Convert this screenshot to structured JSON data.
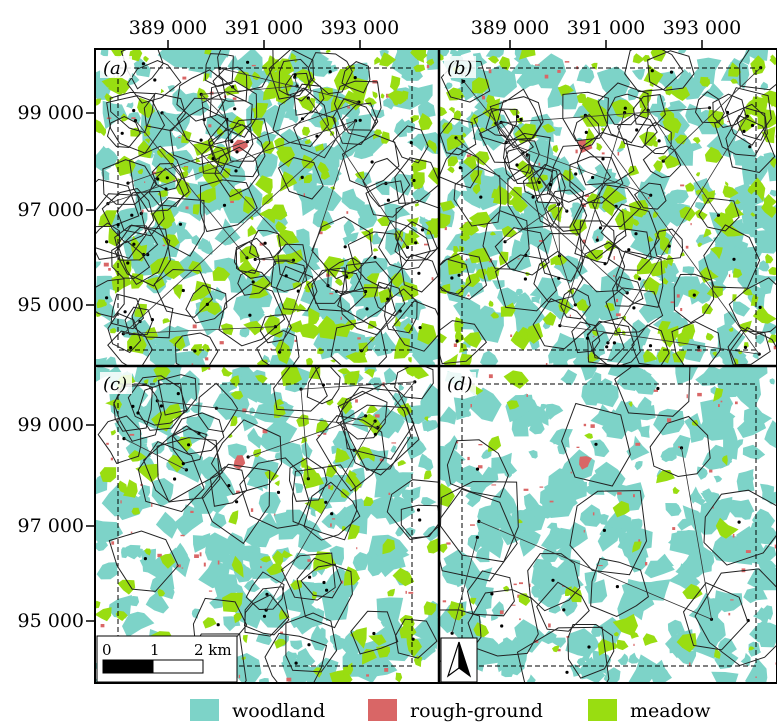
{
  "axes": {
    "x_ticks": [
      "389 000",
      "391 000",
      "393 000"
    ],
    "y_ticks": [
      "99 000",
      "97 000",
      "95 000"
    ]
  },
  "panels": [
    {
      "label": "(a)",
      "home_ranges": 85,
      "mode": "dense"
    },
    {
      "label": "(b)",
      "home_ranges": 70,
      "mode": "dense"
    },
    {
      "label": "(c)",
      "home_ranges": 42,
      "mode": "medium"
    },
    {
      "label": "(d)",
      "home_ranges": 18,
      "mode": "sparse"
    }
  ],
  "legend": [
    {
      "label": "woodland",
      "color": "#7dd3c8"
    },
    {
      "label": "rough-ground",
      "color": "#d96666"
    },
    {
      "label": "meadow",
      "color": "#99dd11"
    }
  ],
  "scale_bar": {
    "labels": [
      "0",
      "1",
      "2 km"
    ]
  },
  "north_arrow": {
    "icon": "north-arrow-icon"
  }
}
